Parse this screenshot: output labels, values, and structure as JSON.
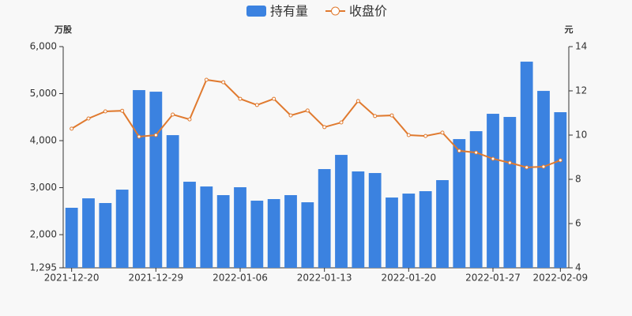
{
  "chart_data": {
    "type": "bar_line",
    "categories": [
      "2021-12-20",
      null,
      null,
      null,
      null,
      "2021-12-29",
      null,
      null,
      null,
      null,
      "2022-01-06",
      null,
      null,
      null,
      null,
      "2022-01-13",
      null,
      null,
      null,
      null,
      "2022-01-20",
      null,
      null,
      null,
      null,
      "2022-01-27",
      null,
      null,
      null,
      "2022-02-09"
    ],
    "series": [
      {
        "name": "持有量",
        "color": "#3b82e0",
        "axis": "y",
        "values": [
          2572,
          2773,
          2673,
          2958,
          5075,
          5041,
          4117,
          3126,
          3025,
          2841,
          3009,
          2723,
          2757,
          2841,
          2689,
          3395,
          3697,
          3345,
          3311,
          2790,
          2874,
          2925,
          3160,
          4033,
          4201,
          4571,
          4504,
          5680,
          5058,
          4605
        ]
      },
      {
        "name": "收盘价",
        "color": "#e07a2f",
        "axis": "y2",
        "values": [
          10.29,
          10.75,
          11.07,
          11.1,
          9.93,
          10.0,
          10.93,
          10.71,
          12.5,
          12.39,
          11.64,
          11.36,
          11.64,
          10.89,
          11.11,
          10.36,
          10.57,
          11.54,
          10.86,
          10.89,
          10.0,
          9.96,
          10.11,
          9.29,
          9.21,
          8.93,
          8.75,
          8.54,
          8.57,
          8.86
        ]
      }
    ],
    "ylabel": "万股",
    "y2label": "元",
    "ylim": [
      1295,
      6000
    ],
    "yticks": [
      {
        "value": 1295,
        "label": "1,295"
      },
      {
        "value": 2000,
        "label": "2,000"
      },
      {
        "value": 3000,
        "label": "3,000"
      },
      {
        "value": 4000,
        "label": "4,000"
      },
      {
        "value": 5000,
        "label": "5,000"
      },
      {
        "value": 6000,
        "label": "6,000"
      }
    ],
    "y2lim": [
      4,
      14
    ],
    "y2ticks": [
      4,
      6,
      8,
      10,
      12,
      14
    ]
  }
}
